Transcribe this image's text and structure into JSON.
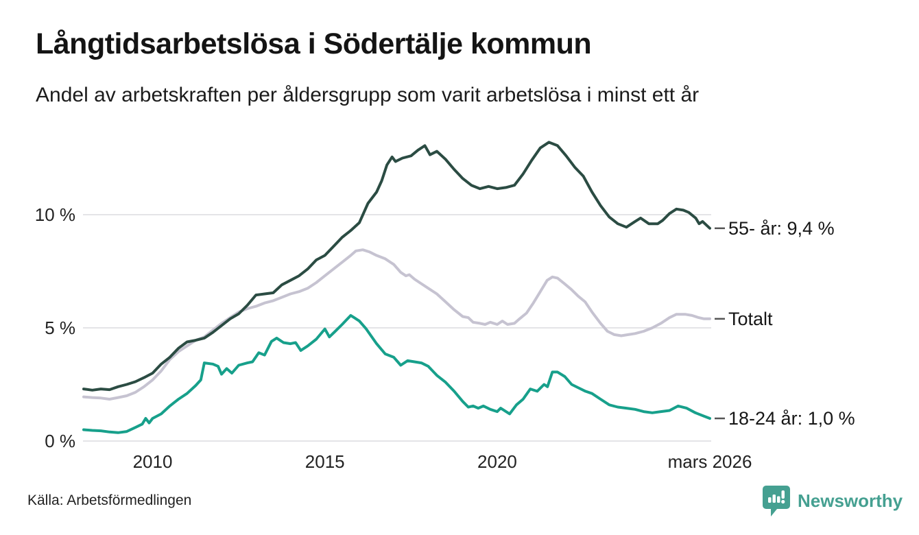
{
  "header": {
    "title": "Långtidsarbetslösa i Södertälje kommun",
    "subtitle": "Andel av arbetskraften per åldersgrupp som varit arbetslösa i minst ett år"
  },
  "source": {
    "label": "Källa: Arbetsförmedlingen"
  },
  "branding": {
    "name": "Newsworthy",
    "color": "#45a091"
  },
  "chart_data": {
    "type": "line",
    "title": "Långtidsarbetslösa i Södertälje kommun",
    "subtitle": "Andel av arbetskraften per åldersgrupp som varit arbetslösa i minst ett år",
    "grid": "horizontal",
    "style": {
      "grid_color": "#e4e4e7",
      "dash_color": "#555555",
      "line_width": 4
    },
    "x_axis": {
      "range": [
        2008,
        2026.17
      ],
      "ticks": [
        {
          "value": 2010,
          "label": "2010"
        },
        {
          "value": 2015,
          "label": "2015"
        },
        {
          "value": 2020,
          "label": "2020"
        },
        {
          "value": 2026.17,
          "label": "mars 2026"
        }
      ]
    },
    "y_axis": {
      "range": [
        0,
        14
      ],
      "unit": "%",
      "ticks": [
        {
          "value": 0,
          "label": "0 %"
        },
        {
          "value": 5,
          "label": "5 %"
        },
        {
          "value": 10,
          "label": "10 %"
        }
      ]
    },
    "series": [
      {
        "name": "Totalt",
        "end_label": "Totalt",
        "color": "#c6c3d1",
        "points": [
          [
            2008.0,
            1.95
          ],
          [
            2008.25,
            1.92
          ],
          [
            2008.5,
            1.9
          ],
          [
            2008.75,
            1.85
          ],
          [
            2009.0,
            1.92
          ],
          [
            2009.25,
            2.0
          ],
          [
            2009.5,
            2.15
          ],
          [
            2009.75,
            2.4
          ],
          [
            2010.0,
            2.7
          ],
          [
            2010.25,
            3.1
          ],
          [
            2010.5,
            3.6
          ],
          [
            2010.75,
            3.95
          ],
          [
            2011.0,
            4.2
          ],
          [
            2011.25,
            4.45
          ],
          [
            2011.5,
            4.6
          ],
          [
            2011.75,
            4.9
          ],
          [
            2012.0,
            5.2
          ],
          [
            2012.25,
            5.45
          ],
          [
            2012.5,
            5.7
          ],
          [
            2012.75,
            5.85
          ],
          [
            2013.0,
            5.95
          ],
          [
            2013.25,
            6.1
          ],
          [
            2013.5,
            6.2
          ],
          [
            2013.75,
            6.35
          ],
          [
            2014.0,
            6.5
          ],
          [
            2014.25,
            6.6
          ],
          [
            2014.5,
            6.75
          ],
          [
            2014.75,
            7.0
          ],
          [
            2015.0,
            7.3
          ],
          [
            2015.25,
            7.6
          ],
          [
            2015.5,
            7.9
          ],
          [
            2015.75,
            8.2
          ],
          [
            2015.9,
            8.4
          ],
          [
            2016.1,
            8.45
          ],
          [
            2016.3,
            8.35
          ],
          [
            2016.5,
            8.2
          ],
          [
            2016.75,
            8.05
          ],
          [
            2017.0,
            7.8
          ],
          [
            2017.2,
            7.45
          ],
          [
            2017.35,
            7.3
          ],
          [
            2017.45,
            7.35
          ],
          [
            2017.6,
            7.15
          ],
          [
            2017.75,
            7.0
          ],
          [
            2018.0,
            6.75
          ],
          [
            2018.25,
            6.5
          ],
          [
            2018.5,
            6.15
          ],
          [
            2018.75,
            5.8
          ],
          [
            2019.0,
            5.5
          ],
          [
            2019.16,
            5.45
          ],
          [
            2019.3,
            5.25
          ],
          [
            2019.5,
            5.2
          ],
          [
            2019.65,
            5.15
          ],
          [
            2019.8,
            5.25
          ],
          [
            2020.0,
            5.15
          ],
          [
            2020.15,
            5.3
          ],
          [
            2020.3,
            5.15
          ],
          [
            2020.5,
            5.2
          ],
          [
            2020.65,
            5.4
          ],
          [
            2020.85,
            5.65
          ],
          [
            2021.05,
            6.1
          ],
          [
            2021.25,
            6.6
          ],
          [
            2021.45,
            7.1
          ],
          [
            2021.6,
            7.25
          ],
          [
            2021.75,
            7.2
          ],
          [
            2021.95,
            6.95
          ],
          [
            2022.15,
            6.7
          ],
          [
            2022.35,
            6.4
          ],
          [
            2022.55,
            6.15
          ],
          [
            2022.75,
            5.7
          ],
          [
            2023.0,
            5.2
          ],
          [
            2023.2,
            4.85
          ],
          [
            2023.4,
            4.7
          ],
          [
            2023.6,
            4.65
          ],
          [
            2023.8,
            4.7
          ],
          [
            2024.0,
            4.75
          ],
          [
            2024.25,
            4.85
          ],
          [
            2024.5,
            5.0
          ],
          [
            2024.75,
            5.2
          ],
          [
            2025.0,
            5.45
          ],
          [
            2025.2,
            5.6
          ],
          [
            2025.45,
            5.6
          ],
          [
            2025.65,
            5.55
          ],
          [
            2025.85,
            5.45
          ],
          [
            2026.0,
            5.4
          ],
          [
            2026.17,
            5.4
          ]
        ]
      },
      {
        "name": "55- år",
        "end_label": "55- år: 9,4 %",
        "color": "#2b4c43",
        "points": [
          [
            2008.0,
            2.3
          ],
          [
            2008.25,
            2.25
          ],
          [
            2008.5,
            2.3
          ],
          [
            2008.75,
            2.27
          ],
          [
            2009.0,
            2.4
          ],
          [
            2009.25,
            2.5
          ],
          [
            2009.5,
            2.62
          ],
          [
            2009.75,
            2.8
          ],
          [
            2010.0,
            3.0
          ],
          [
            2010.25,
            3.4
          ],
          [
            2010.5,
            3.7
          ],
          [
            2010.75,
            4.1
          ],
          [
            2011.0,
            4.38
          ],
          [
            2011.25,
            4.45
          ],
          [
            2011.5,
            4.55
          ],
          [
            2011.75,
            4.8
          ],
          [
            2012.0,
            5.1
          ],
          [
            2012.25,
            5.4
          ],
          [
            2012.5,
            5.62
          ],
          [
            2012.75,
            6.0
          ],
          [
            2013.0,
            6.45
          ],
          [
            2013.25,
            6.5
          ],
          [
            2013.5,
            6.55
          ],
          [
            2013.75,
            6.9
          ],
          [
            2014.0,
            7.1
          ],
          [
            2014.25,
            7.3
          ],
          [
            2014.5,
            7.6
          ],
          [
            2014.75,
            8.0
          ],
          [
            2015.0,
            8.2
          ],
          [
            2015.25,
            8.6
          ],
          [
            2015.5,
            9.0
          ],
          [
            2015.75,
            9.3
          ],
          [
            2016.0,
            9.65
          ],
          [
            2016.25,
            10.5
          ],
          [
            2016.5,
            11.0
          ],
          [
            2016.65,
            11.5
          ],
          [
            2016.8,
            12.2
          ],
          [
            2016.95,
            12.55
          ],
          [
            2017.05,
            12.35
          ],
          [
            2017.25,
            12.5
          ],
          [
            2017.5,
            12.6
          ],
          [
            2017.7,
            12.85
          ],
          [
            2017.9,
            13.05
          ],
          [
            2018.05,
            12.65
          ],
          [
            2018.25,
            12.8
          ],
          [
            2018.5,
            12.45
          ],
          [
            2018.75,
            12.0
          ],
          [
            2019.0,
            11.6
          ],
          [
            2019.25,
            11.3
          ],
          [
            2019.5,
            11.15
          ],
          [
            2019.75,
            11.25
          ],
          [
            2020.0,
            11.15
          ],
          [
            2020.25,
            11.2
          ],
          [
            2020.5,
            11.3
          ],
          [
            2020.75,
            11.8
          ],
          [
            2021.0,
            12.4
          ],
          [
            2021.25,
            12.95
          ],
          [
            2021.5,
            13.2
          ],
          [
            2021.75,
            13.05
          ],
          [
            2022.0,
            12.6
          ],
          [
            2022.25,
            12.1
          ],
          [
            2022.5,
            11.7
          ],
          [
            2022.75,
            11.0
          ],
          [
            2023.0,
            10.4
          ],
          [
            2023.25,
            9.9
          ],
          [
            2023.5,
            9.6
          ],
          [
            2023.75,
            9.45
          ],
          [
            2024.0,
            9.7
          ],
          [
            2024.16,
            9.85
          ],
          [
            2024.4,
            9.6
          ],
          [
            2024.66,
            9.6
          ],
          [
            2024.8,
            9.75
          ],
          [
            2025.0,
            10.05
          ],
          [
            2025.2,
            10.25
          ],
          [
            2025.4,
            10.2
          ],
          [
            2025.56,
            10.1
          ],
          [
            2025.76,
            9.85
          ],
          [
            2025.86,
            9.6
          ],
          [
            2025.96,
            9.7
          ],
          [
            2026.17,
            9.4
          ]
        ]
      },
      {
        "name": "18-24 år",
        "end_label": "18-24 år: 1,0 %",
        "color": "#17a08b",
        "points": [
          [
            2008.0,
            0.5
          ],
          [
            2008.25,
            0.47
          ],
          [
            2008.5,
            0.45
          ],
          [
            2008.75,
            0.4
          ],
          [
            2009.0,
            0.37
          ],
          [
            2009.25,
            0.42
          ],
          [
            2009.5,
            0.6
          ],
          [
            2009.7,
            0.75
          ],
          [
            2009.8,
            1.0
          ],
          [
            2009.9,
            0.8
          ],
          [
            2010.0,
            1.0
          ],
          [
            2010.25,
            1.2
          ],
          [
            2010.5,
            1.55
          ],
          [
            2010.75,
            1.85
          ],
          [
            2011.0,
            2.1
          ],
          [
            2011.25,
            2.45
          ],
          [
            2011.4,
            2.7
          ],
          [
            2011.5,
            3.45
          ],
          [
            2011.75,
            3.4
          ],
          [
            2011.9,
            3.3
          ],
          [
            2012.0,
            2.95
          ],
          [
            2012.15,
            3.2
          ],
          [
            2012.3,
            3.0
          ],
          [
            2012.5,
            3.35
          ],
          [
            2012.75,
            3.45
          ],
          [
            2012.9,
            3.5
          ],
          [
            2013.08,
            3.9
          ],
          [
            2013.25,
            3.8
          ],
          [
            2013.45,
            4.4
          ],
          [
            2013.6,
            4.55
          ],
          [
            2013.8,
            4.35
          ],
          [
            2014.0,
            4.3
          ],
          [
            2014.15,
            4.35
          ],
          [
            2014.3,
            4.0
          ],
          [
            2014.5,
            4.2
          ],
          [
            2014.75,
            4.5
          ],
          [
            2015.0,
            4.95
          ],
          [
            2015.13,
            4.6
          ],
          [
            2015.3,
            4.85
          ],
          [
            2015.5,
            5.15
          ],
          [
            2015.75,
            5.55
          ],
          [
            2015.85,
            5.45
          ],
          [
            2016.0,
            5.3
          ],
          [
            2016.2,
            4.95
          ],
          [
            2016.5,
            4.3
          ],
          [
            2016.75,
            3.85
          ],
          [
            2017.0,
            3.7
          ],
          [
            2017.2,
            3.35
          ],
          [
            2017.4,
            3.55
          ],
          [
            2017.6,
            3.5
          ],
          [
            2017.8,
            3.45
          ],
          [
            2018.0,
            3.3
          ],
          [
            2018.25,
            2.9
          ],
          [
            2018.5,
            2.6
          ],
          [
            2018.75,
            2.2
          ],
          [
            2019.0,
            1.75
          ],
          [
            2019.16,
            1.5
          ],
          [
            2019.3,
            1.55
          ],
          [
            2019.45,
            1.45
          ],
          [
            2019.6,
            1.55
          ],
          [
            2019.8,
            1.4
          ],
          [
            2020.0,
            1.3
          ],
          [
            2020.1,
            1.45
          ],
          [
            2020.36,
            1.2
          ],
          [
            2020.56,
            1.6
          ],
          [
            2020.75,
            1.85
          ],
          [
            2020.96,
            2.3
          ],
          [
            2021.16,
            2.2
          ],
          [
            2021.36,
            2.5
          ],
          [
            2021.46,
            2.4
          ],
          [
            2021.6,
            3.05
          ],
          [
            2021.75,
            3.05
          ],
          [
            2021.96,
            2.85
          ],
          [
            2022.16,
            2.5
          ],
          [
            2022.36,
            2.35
          ],
          [
            2022.56,
            2.2
          ],
          [
            2022.75,
            2.1
          ],
          [
            2023.0,
            1.85
          ],
          [
            2023.25,
            1.6
          ],
          [
            2023.5,
            1.5
          ],
          [
            2023.75,
            1.45
          ],
          [
            2024.0,
            1.4
          ],
          [
            2024.25,
            1.3
          ],
          [
            2024.5,
            1.25
          ],
          [
            2024.75,
            1.3
          ],
          [
            2025.0,
            1.35
          ],
          [
            2025.25,
            1.55
          ],
          [
            2025.5,
            1.45
          ],
          [
            2025.75,
            1.25
          ],
          [
            2026.0,
            1.1
          ],
          [
            2026.17,
            1.0
          ]
        ]
      }
    ]
  }
}
